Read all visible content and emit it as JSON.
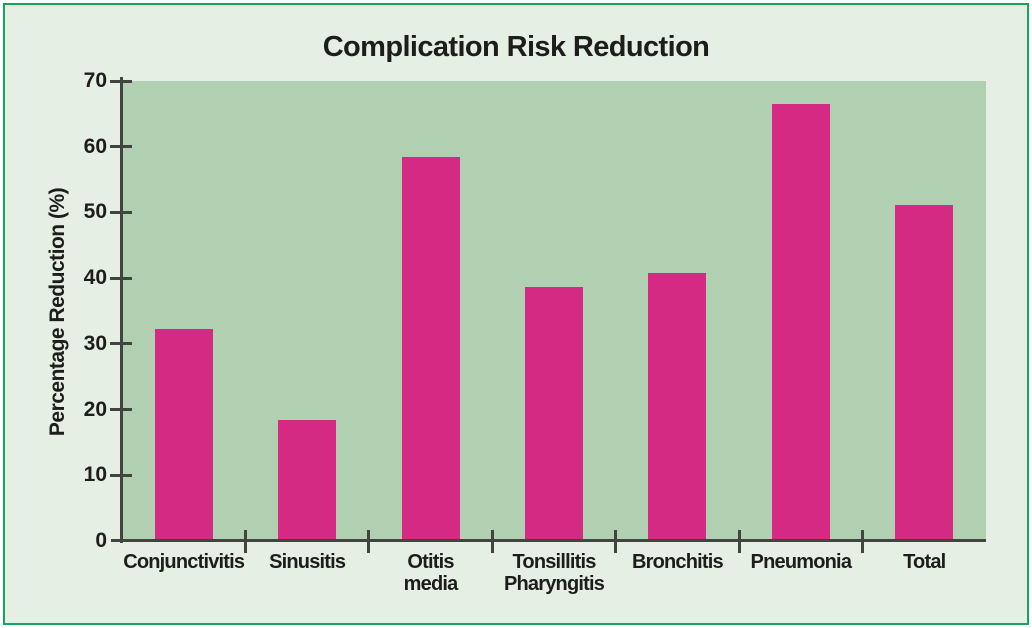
{
  "figure": {
    "title": "Complication Risk Reduction",
    "colors": {
      "frame_border": "#17a45c",
      "figure_background": "#e6efe3",
      "plot_background": "#b1d0b2",
      "bar": "#d52a84",
      "axis": "#41443f",
      "text": "#1d1d1b"
    }
  },
  "chart_data": {
    "type": "bar",
    "title": "Complication Risk Reduction",
    "xlabel": "",
    "ylabel": "Percentage Reduction (%)",
    "categories": [
      "Conjunctivitis",
      "Sinusitis",
      "Otitis\nmedia",
      "Tonsillitis\nPharyngitis",
      "Bronchitis",
      "Pneumonia",
      "Total"
    ],
    "values": [
      32.3,
      18.4,
      58.5,
      38.7,
      40.8,
      66.5,
      51.2
    ],
    "ylim": [
      0,
      70
    ],
    "yticks": [
      0,
      10,
      20,
      30,
      40,
      50,
      60,
      70
    ],
    "grid": false,
    "legend": false,
    "bar_color": "#d52a84"
  }
}
